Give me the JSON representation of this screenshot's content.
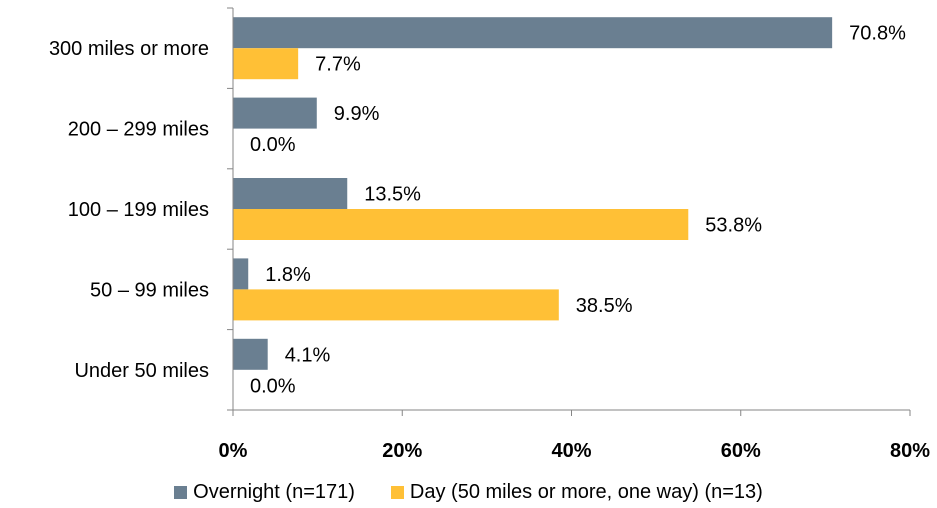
{
  "chart_data": {
    "type": "bar",
    "orientation": "horizontal",
    "categories": [
      "300 miles or more",
      "200 – 299 miles",
      "100 – 199 miles",
      "50 – 99 miles",
      "Under 50 miles"
    ],
    "series": [
      {
        "name": "Overnight (n=171)",
        "color": "#6a7f91",
        "values": [
          70.8,
          9.9,
          13.5,
          1.8,
          4.1
        ],
        "labels": [
          "70.8%",
          "9.9%",
          "13.5%",
          "1.8%",
          "4.1%"
        ]
      },
      {
        "name": "Day (50 miles or more, one way) (n=13)",
        "color": "#ffc036",
        "values": [
          7.7,
          0.0,
          53.8,
          38.5,
          0.0
        ],
        "labels": [
          "7.7%",
          "0.0%",
          "53.8%",
          "38.5%",
          "0.0%"
        ]
      }
    ],
    "xlim": [
      0,
      80
    ],
    "xticks": [
      0,
      20,
      40,
      60,
      80
    ],
    "xtick_labels": [
      "0%",
      "20%",
      "40%",
      "60%",
      "80%"
    ],
    "title": "",
    "xlabel": "",
    "ylabel": "",
    "grid": false,
    "legend_position": "bottom"
  }
}
